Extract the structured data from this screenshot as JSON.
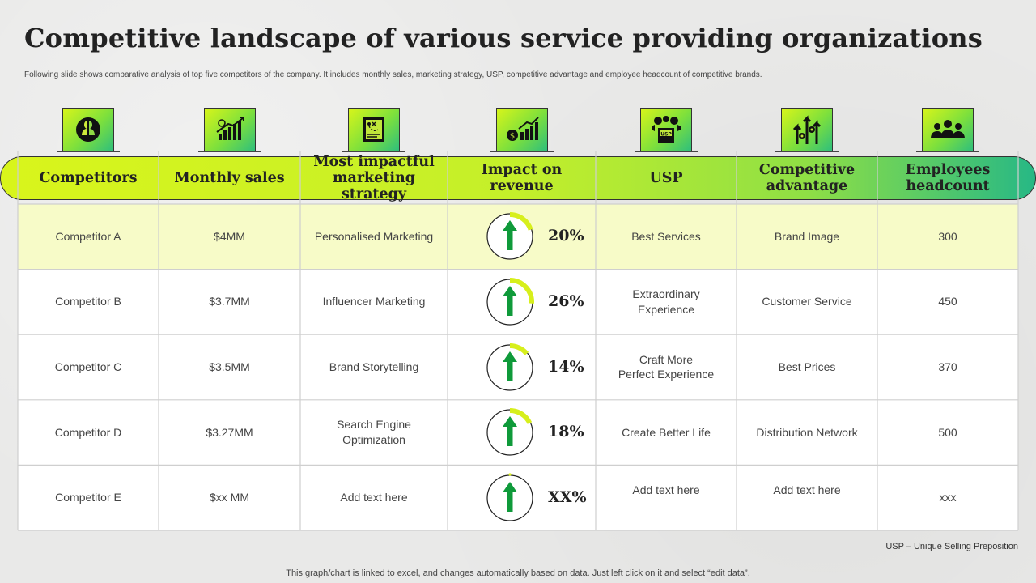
{
  "page": {
    "title": "Competitive landscape of various service providing organizations",
    "subtitle": "Following slide shows comparative analysis of top five competitors of the company. It includes monthly sales, marketing strategy, USP, competitive advantage and employee headcount of competitive brands.",
    "footnote": "USP – Unique Selling Preposition",
    "bottom_note": "This graph/chart is linked to excel, and changes automatically based on data. Just left click on it and select “edit data”."
  },
  "colors": {
    "accent_yellow": "#d9f51b",
    "accent_green": "#27b885",
    "highlight_row": "#f7fbc8",
    "arrow_green": "#0f9a3a",
    "ring_yellow": "#d7ef1c"
  },
  "columns": [
    {
      "label": "Competitors",
      "icon": "competitors-heads-icon"
    },
    {
      "label": "Monthly sales",
      "icon": "sales-growth-chart-icon"
    },
    {
      "label": "Most impactful marketing strategy",
      "icon": "strategy-board-icon"
    },
    {
      "label": "Impact on revenue",
      "icon": "revenue-money-chart-icon"
    },
    {
      "label": "USP",
      "icon": "usp-megaphone-box-icon"
    },
    {
      "label": "Competitive advantage",
      "icon": "advantage-arrows-gears-icon"
    },
    {
      "label": "Employees headcount",
      "icon": "employees-group-icon"
    }
  ],
  "rows": [
    {
      "competitor": "Competitor  A",
      "sales": "$4MM",
      "strategy": "Personalised Marketing",
      "impact_label": "20%",
      "impact_value": 20,
      "usp": "Best Services",
      "advantage": "Brand Image",
      "headcount": "300",
      "highlight": true
    },
    {
      "competitor": "Competitor  B",
      "sales": "$3.7MM",
      "strategy": "Influencer Marketing",
      "impact_label": "26%",
      "impact_value": 26,
      "usp": "Extraordinary\nExperience",
      "advantage": "Customer Service",
      "headcount": "450",
      "highlight": false
    },
    {
      "competitor": "Competitor  C",
      "sales": "$3.5MM",
      "strategy": "Brand Storytelling",
      "impact_label": "14%",
      "impact_value": 14,
      "usp": "Craft More\nPerfect Experience",
      "advantage": "Best Prices",
      "headcount": "370",
      "highlight": false
    },
    {
      "competitor": "Competitor  D",
      "sales": "$3.27MM",
      "strategy": "Search Engine\nOptimization",
      "impact_label": "18%",
      "impact_value": 18,
      "usp": "Create Better Life",
      "advantage": "Distribution Network",
      "headcount": "500",
      "highlight": false
    },
    {
      "competitor": "Competitor  E",
      "sales": "$xx MM",
      "strategy": "Add text here",
      "impact_label": "XX%",
      "impact_value": 0,
      "usp": "Add text here",
      "advantage": "Add text here",
      "headcount": "xxx",
      "highlight": false
    }
  ]
}
